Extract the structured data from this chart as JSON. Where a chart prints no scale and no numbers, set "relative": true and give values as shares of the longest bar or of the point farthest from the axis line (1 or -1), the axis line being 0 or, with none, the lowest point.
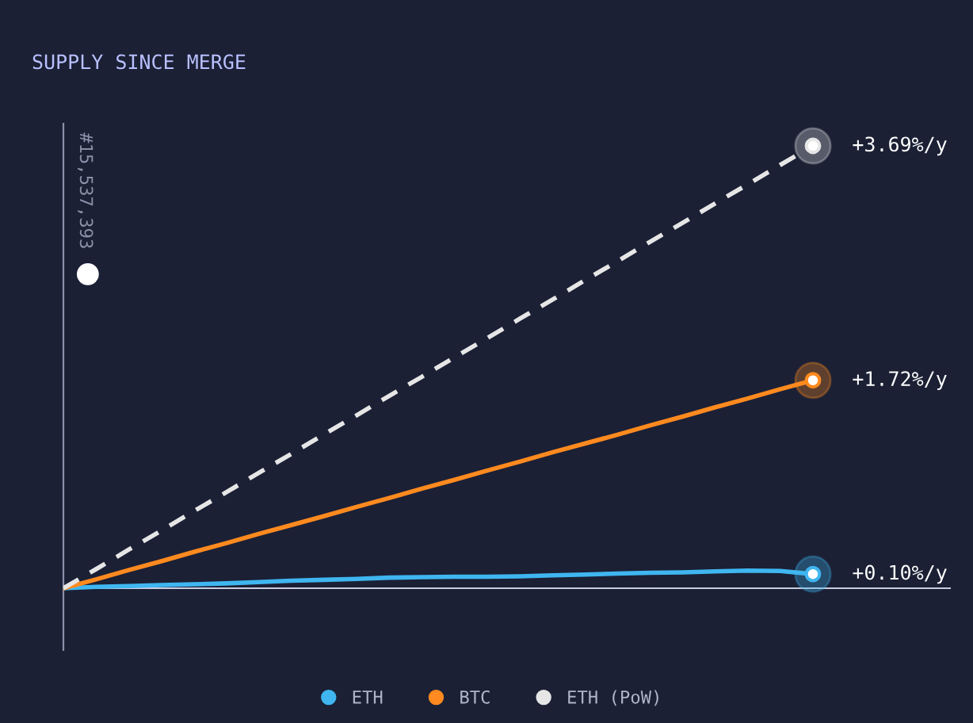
{
  "chart_data": {
    "type": "line",
    "title": "SUPPLY SINCE MERGE",
    "relative": true,
    "categories": [
      null,
      null,
      null,
      null,
      null,
      null,
      null,
      null,
      null,
      null,
      null,
      null,
      null,
      null,
      null,
      null,
      null,
      null,
      null,
      null,
      null,
      null,
      null,
      null
    ],
    "series": [
      {
        "name": "ETH",
        "color": "#3fb6f0",
        "values": [
          0,
          0.003,
          0.005,
          0.007,
          0.009,
          0.011,
          0.014,
          0.017,
          0.019,
          0.021,
          0.024,
          0.025,
          0.026,
          0.026,
          0.027,
          0.029,
          0.031,
          0.033,
          0.035,
          0.036,
          0.038,
          0.04,
          0.039,
          0.032
        ]
      },
      {
        "name": "BTC",
        "color": "#ff8a1f",
        "values": [
          0,
          0.02,
          0.041,
          0.061,
          0.082,
          0.102,
          0.123,
          0.143,
          0.163,
          0.184,
          0.204,
          0.225,
          0.245,
          0.266,
          0.286,
          0.307,
          0.327,
          0.347,
          0.368,
          0.388,
          0.409,
          0.429,
          0.45,
          0.47
        ]
      },
      {
        "name": "ETH (PoW)",
        "color": "#e6e6e6",
        "line_style": "dashed",
        "values": [
          0,
          0.043,
          0.087,
          0.13,
          0.174,
          0.217,
          0.261,
          0.304,
          0.348,
          0.391,
          0.435,
          0.478,
          0.522,
          0.565,
          0.609,
          0.652,
          0.696,
          0.739,
          0.783,
          0.826,
          0.87,
          0.913,
          0.957,
          1
        ]
      }
    ],
    "annotations": [
      "+0.10%/y",
      "+1.72%/y",
      "+3.69%/y",
      "#15,537,393"
    ],
    "legend": "bottom"
  }
}
